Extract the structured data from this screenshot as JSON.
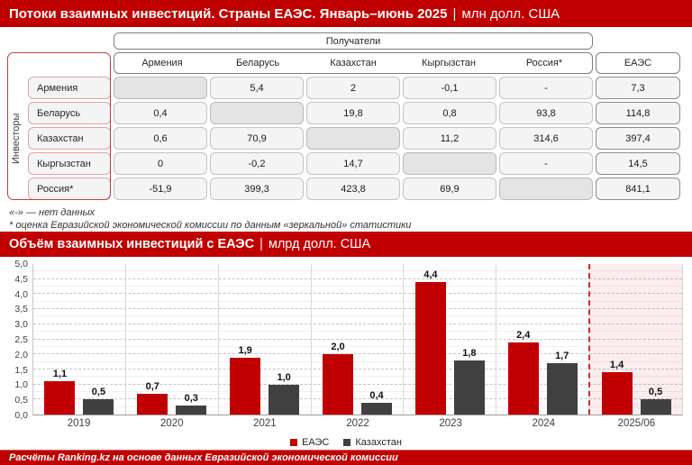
{
  "header1": {
    "title_bold": "Потоки взаимных инвестиций. Страны ЕАЭС. Январь–июнь 2025",
    "separator": "|",
    "unit": "млн долл. США"
  },
  "table": {
    "recipients_label": "Получатели",
    "investors_label": "Инвесторы",
    "columns": [
      "Армения",
      "Беларусь",
      "Казахстан",
      "Кыргызстан",
      "Россия*"
    ],
    "total_column": "ЕАЭС",
    "rows": [
      {
        "label": "Армения",
        "values": [
          null,
          "5,4",
          "2",
          "-0,1",
          "-"
        ],
        "total": "7,3"
      },
      {
        "label": "Беларусь",
        "values": [
          "0,4",
          null,
          "19,8",
          "0,8",
          "93,8"
        ],
        "total": "114,8"
      },
      {
        "label": "Казахстан",
        "values": [
          "0,6",
          "70,9",
          null,
          "11,2",
          "314,6"
        ],
        "total": "397,4"
      },
      {
        "label": "Кыргызстан",
        "values": [
          "0",
          "-0,2",
          "14,7",
          null,
          "-"
        ],
        "total": "14,5"
      },
      {
        "label": "Россия*",
        "values": [
          "-51,9",
          "399,3",
          "423,8",
          "69,9",
          null
        ],
        "total": "841,1"
      }
    ]
  },
  "footnotes": {
    "line1": "«-» — нет данных",
    "line2": "* оценка Евразийской экономической комиссии по данным «зеркальной» статистики"
  },
  "header2": {
    "title_bold": "Объём взаимных инвестиций с ЕАЭС",
    "separator": "|",
    "unit": "млрд долл. США"
  },
  "chart_data": {
    "type": "bar",
    "title": "Объём взаимных инвестиций с ЕАЭС, млрд долл. США",
    "categories": [
      "2019",
      "2020",
      "2021",
      "2022",
      "2023",
      "2024",
      "2025/06"
    ],
    "series": [
      {
        "name": "ЕАЭС",
        "color": "#c00000",
        "values": [
          1.1,
          0.7,
          1.9,
          2.0,
          4.4,
          2.4,
          1.4
        ]
      },
      {
        "name": "Казахстан",
        "color": "#404040",
        "values": [
          0.5,
          0.3,
          1.0,
          0.4,
          1.8,
          1.7,
          0.5
        ]
      }
    ],
    "value_labels": [
      [
        "1,1",
        "0,7",
        "1,9",
        "2,0",
        "4,4",
        "2,4",
        "1,4"
      ],
      [
        "0,5",
        "0,3",
        "1,0",
        "0,4",
        "1,8",
        "1,7",
        "0,5"
      ]
    ],
    "ylim": [
      0,
      5
    ],
    "ytick_step": 0.5,
    "ytick_labels": [
      "5,0",
      "4,5",
      "4,0",
      "3,5",
      "3,0",
      "2,5",
      "2,0",
      "1,5",
      "1,0",
      "0,5",
      "0,0"
    ],
    "grid": true,
    "legend_position": "bottom",
    "highlight_category": "2025/06",
    "colors": {
      "accent_red": "#c00000",
      "bar_gray": "#404040",
      "highlight_bg": "#f8ecec",
      "highlight_border": "#cf2b2b"
    }
  },
  "footer": {
    "text": "Расчёты Ranking.kz на основе данных Евразийской экономической комиссии"
  }
}
